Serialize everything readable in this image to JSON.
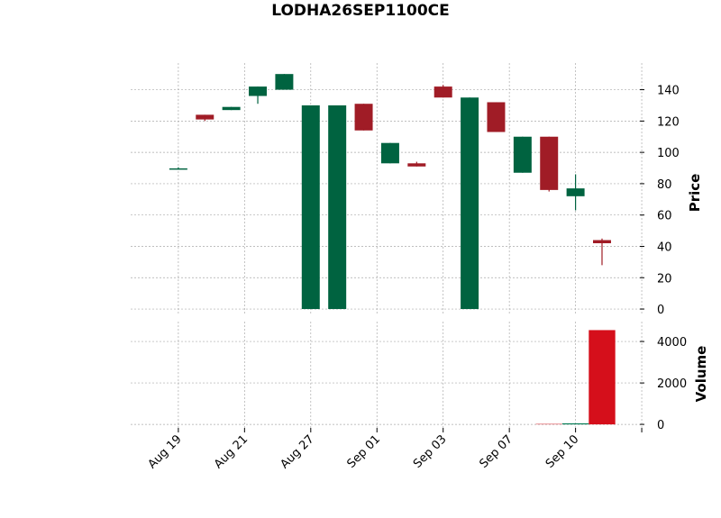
{
  "chart_data": {
    "type": "candlestick",
    "title": "LODHA26SEP1100CE",
    "x": [
      0,
      1,
      2,
      3,
      4,
      5,
      6,
      7,
      8,
      9,
      10,
      11,
      12,
      13,
      14,
      15,
      16
    ],
    "open": [
      89.5,
      124,
      127,
      136,
      140,
      0,
      0,
      131,
      93,
      93,
      142,
      0,
      132,
      87,
      110,
      72,
      44
    ],
    "high": [
      90.5,
      124,
      129,
      142,
      150,
      130,
      130,
      131,
      106,
      94,
      143,
      135,
      132,
      110,
      110,
      86,
      45
    ],
    "low": [
      89,
      120,
      127,
      131,
      140,
      0,
      0,
      114,
      93,
      91,
      135,
      0,
      113,
      87,
      75,
      63,
      28
    ],
    "close": [
      89.8,
      121,
      129,
      142,
      150,
      130,
      130,
      114,
      106,
      91,
      135,
      135,
      113,
      110,
      76,
      77,
      42
    ],
    "volume": [
      0,
      0,
      0,
      0,
      0,
      0,
      0,
      0,
      0,
      0,
      0,
      0,
      0,
      0,
      20,
      50,
      4550
    ],
    "up_color": "#006340",
    "down_color": "#a01c26",
    "volume_up_color": "#007a52",
    "volume_down_color": "#d50f1b",
    "xlim": [
      -1.8,
      17.6
    ],
    "xticks": [
      {
        "value": 0,
        "label": "Aug 19"
      },
      {
        "value": 2.5,
        "label": "Aug 21"
      },
      {
        "value": 5,
        "label": "Aug 27"
      },
      {
        "value": 7.5,
        "label": "Sep 01"
      },
      {
        "value": 10,
        "label": "Sep 03"
      },
      {
        "value": 12.5,
        "label": "Sep 07"
      },
      {
        "value": 15,
        "label": "Sep 10"
      },
      {
        "value": 17.5,
        "label": null
      }
    ],
    "ylabel": "Price",
    "ylim": [
      -4,
      157
    ],
    "yticks": [
      0,
      20,
      40,
      60,
      80,
      100,
      120,
      140
    ],
    "volume_label": "Volume",
    "volume_ylim": [
      -170,
      4960
    ],
    "volume_yticks": [
      0,
      2000,
      4000
    ],
    "grid": true
  }
}
